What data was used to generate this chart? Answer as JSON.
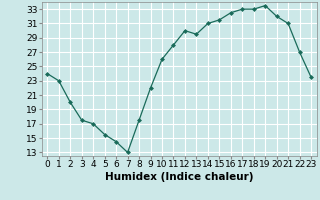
{
  "x": [
    0,
    1,
    2,
    3,
    4,
    5,
    6,
    7,
    8,
    9,
    10,
    11,
    12,
    13,
    14,
    15,
    16,
    17,
    18,
    19,
    20,
    21,
    22,
    23
  ],
  "y": [
    24,
    23,
    20,
    17.5,
    17,
    15.5,
    14.5,
    13,
    17.5,
    22,
    26,
    28,
    30,
    29.5,
    31,
    31.5,
    32.5,
    33,
    33,
    33.5,
    32,
    31,
    27,
    23.5
  ],
  "xlabel": "Humidex (Indice chaleur)",
  "xlim": [
    -0.5,
    23.5
  ],
  "ylim": [
    12.5,
    34
  ],
  "yticks": [
    13,
    15,
    17,
    19,
    21,
    23,
    25,
    27,
    29,
    31,
    33
  ],
  "xticks": [
    0,
    1,
    2,
    3,
    4,
    5,
    6,
    7,
    8,
    9,
    10,
    11,
    12,
    13,
    14,
    15,
    16,
    17,
    18,
    19,
    20,
    21,
    22,
    23
  ],
  "line_color": "#1a6b5a",
  "marker": "D",
  "marker_size": 2,
  "bg_color": "#cce8e8",
  "grid_color": "#ffffff",
  "xlabel_fontsize": 7.5,
  "tick_fontsize": 6.5
}
